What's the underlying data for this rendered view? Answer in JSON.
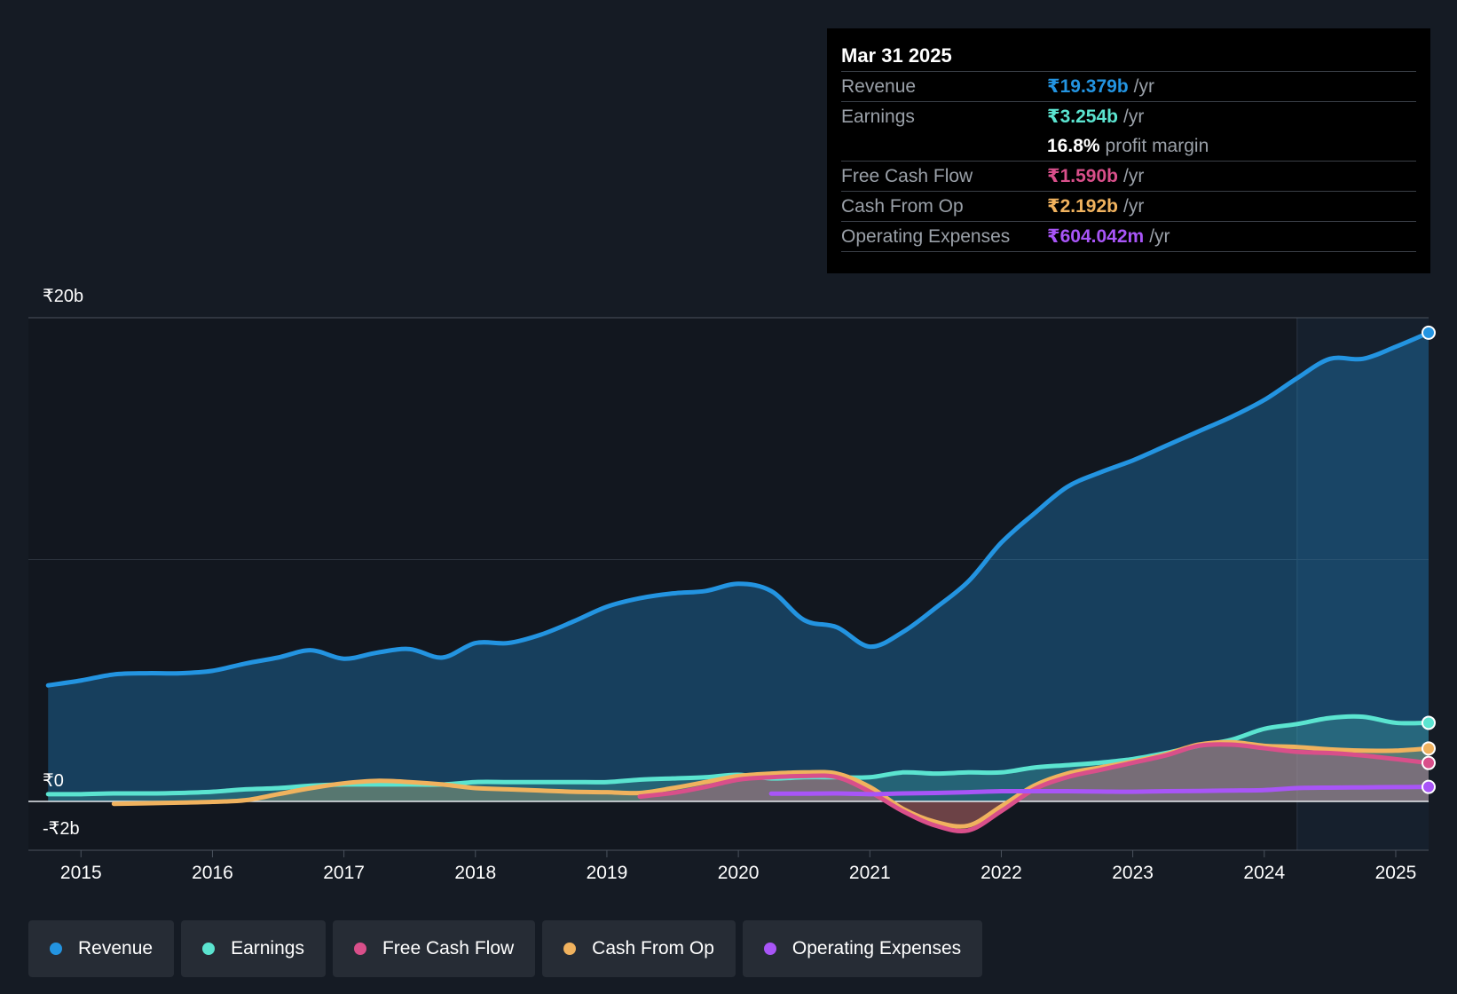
{
  "tooltip": {
    "date": "Mar 31 2025",
    "rows": [
      {
        "label": "Revenue",
        "value": "₹19.379b",
        "unit": "/yr",
        "color": "#2394e1"
      },
      {
        "label": "Earnings",
        "value": "₹3.254b",
        "unit": "/yr",
        "color": "#5be4d0"
      },
      {
        "label": "",
        "value": "16.8%",
        "unit": "profit margin",
        "color": "#ffffff"
      },
      {
        "label": "Free Cash Flow",
        "value": "₹1.590b",
        "unit": "/yr",
        "color": "#d94f8a"
      },
      {
        "label": "Cash From Op",
        "value": "₹2.192b",
        "unit": "/yr",
        "color": "#f0b25e"
      },
      {
        "label": "Operating Expenses",
        "value": "₹604.042m",
        "unit": "/yr",
        "color": "#a855f7"
      }
    ]
  },
  "legend": [
    {
      "label": "Revenue",
      "color": "#2394e1"
    },
    {
      "label": "Earnings",
      "color": "#5be4d0"
    },
    {
      "label": "Free Cash Flow",
      "color": "#d94f8a"
    },
    {
      "label": "Cash From Op",
      "color": "#f0b25e"
    },
    {
      "label": "Operating Expenses",
      "color": "#a855f7"
    }
  ],
  "chart_data": {
    "type": "area",
    "title": "",
    "xlabel": "",
    "ylabel": "",
    "y_axis_labels": {
      "top": "₹20b",
      "zero": "₹0",
      "bottom": "-₹2b"
    },
    "ylim": [
      -2,
      20
    ],
    "xlim": [
      2014.6,
      2025.25
    ],
    "x_ticks": [
      2015,
      2016,
      2017,
      2018,
      2019,
      2020,
      2021,
      2022,
      2023,
      2024,
      2025
    ],
    "forecast_shade_start": 2024.25,
    "series": [
      {
        "name": "Revenue",
        "color": "#2394e1",
        "fill": true,
        "x": [
          2014.75,
          2015.0,
          2015.25,
          2015.5,
          2015.75,
          2016.0,
          2016.25,
          2016.5,
          2016.75,
          2017.0,
          2017.25,
          2017.5,
          2017.75,
          2018.0,
          2018.25,
          2018.5,
          2018.75,
          2019.0,
          2019.25,
          2019.5,
          2019.75,
          2020.0,
          2020.25,
          2020.5,
          2020.75,
          2021.0,
          2021.25,
          2021.5,
          2021.75,
          2022.0,
          2022.25,
          2022.5,
          2022.75,
          2023.0,
          2023.25,
          2023.5,
          2023.75,
          2024.0,
          2024.25,
          2024.5,
          2024.75,
          2025.0,
          2025.25
        ],
        "y": [
          4.8,
          5.0,
          5.25,
          5.3,
          5.3,
          5.4,
          5.7,
          5.95,
          6.25,
          5.9,
          6.15,
          6.3,
          5.95,
          6.55,
          6.55,
          6.9,
          7.45,
          8.05,
          8.4,
          8.6,
          8.7,
          9.0,
          8.7,
          7.5,
          7.2,
          6.4,
          7.0,
          8.0,
          9.1,
          10.7,
          11.9,
          13.0,
          13.6,
          14.1,
          14.7,
          15.3,
          15.9,
          16.6,
          17.5,
          18.3,
          18.3,
          18.8,
          19.38
        ]
      },
      {
        "name": "Earnings",
        "color": "#5be4d0",
        "fill": true,
        "x": [
          2014.75,
          2015.0,
          2015.25,
          2015.5,
          2015.75,
          2016.0,
          2016.25,
          2016.5,
          2016.75,
          2017.0,
          2017.25,
          2017.5,
          2017.75,
          2018.0,
          2018.25,
          2018.5,
          2018.75,
          2019.0,
          2019.25,
          2019.5,
          2019.75,
          2020.0,
          2020.25,
          2020.5,
          2020.75,
          2021.0,
          2021.25,
          2021.5,
          2021.75,
          2022.0,
          2022.25,
          2022.5,
          2022.75,
          2023.0,
          2023.25,
          2023.5,
          2023.75,
          2024.0,
          2024.25,
          2024.5,
          2024.75,
          2025.0,
          2025.25
        ],
        "y": [
          0.3,
          0.3,
          0.33,
          0.33,
          0.35,
          0.4,
          0.5,
          0.55,
          0.65,
          0.7,
          0.7,
          0.7,
          0.7,
          0.8,
          0.8,
          0.8,
          0.8,
          0.8,
          0.9,
          0.95,
          1.0,
          1.1,
          0.95,
          1.0,
          1.0,
          1.0,
          1.2,
          1.15,
          1.2,
          1.2,
          1.4,
          1.5,
          1.6,
          1.75,
          2.0,
          2.3,
          2.55,
          3.0,
          3.2,
          3.45,
          3.5,
          3.25,
          3.25
        ]
      },
      {
        "name": "Free Cash Flow",
        "color": "#d94f8a",
        "fill": true,
        "x": [
          2019.25,
          2019.5,
          2019.75,
          2020.0,
          2020.25,
          2020.5,
          2020.75,
          2021.0,
          2021.25,
          2021.5,
          2021.75,
          2022.0,
          2022.25,
          2022.5,
          2022.75,
          2023.0,
          2023.25,
          2023.5,
          2023.75,
          2024.0,
          2024.25,
          2024.5,
          2024.75,
          2025.0,
          2025.25
        ],
        "y": [
          0.2,
          0.35,
          0.6,
          0.9,
          1.0,
          1.05,
          1.0,
          0.4,
          -0.4,
          -1.0,
          -1.2,
          -0.4,
          0.5,
          1.0,
          1.3,
          1.6,
          1.9,
          2.3,
          2.35,
          2.2,
          2.05,
          2.0,
          1.9,
          1.75,
          1.59
        ]
      },
      {
        "name": "Cash From Op",
        "color": "#f0b25e",
        "fill": true,
        "x": [
          2015.25,
          2015.5,
          2015.75,
          2016.0,
          2016.25,
          2016.5,
          2016.75,
          2017.0,
          2017.25,
          2017.5,
          2017.75,
          2018.0,
          2018.25,
          2018.5,
          2018.75,
          2019.0,
          2019.25,
          2019.5,
          2019.75,
          2020.0,
          2020.25,
          2020.5,
          2020.75,
          2021.0,
          2021.25,
          2021.5,
          2021.75,
          2022.0,
          2022.25,
          2022.5,
          2022.75,
          2023.0,
          2023.25,
          2023.5,
          2023.75,
          2024.0,
          2024.25,
          2024.5,
          2024.75,
          2025.0,
          2025.25
        ],
        "y": [
          -0.1,
          -0.08,
          -0.05,
          -0.02,
          0.05,
          0.3,
          0.55,
          0.75,
          0.85,
          0.8,
          0.7,
          0.55,
          0.5,
          0.45,
          0.4,
          0.38,
          0.35,
          0.55,
          0.8,
          1.05,
          1.15,
          1.2,
          1.15,
          0.6,
          -0.3,
          -0.85,
          -1.0,
          -0.2,
          0.65,
          1.15,
          1.4,
          1.65,
          1.95,
          2.35,
          2.45,
          2.3,
          2.25,
          2.15,
          2.1,
          2.1,
          2.19
        ]
      },
      {
        "name": "Operating Expenses",
        "color": "#a855f7",
        "fill": false,
        "x": [
          2020.25,
          2020.5,
          2020.75,
          2021.0,
          2021.25,
          2021.5,
          2021.75,
          2022.0,
          2022.25,
          2022.5,
          2022.75,
          2023.0,
          2023.25,
          2023.5,
          2023.75,
          2024.0,
          2024.25,
          2024.5,
          2024.75,
          2025.0,
          2025.25
        ],
        "y": [
          0.32,
          0.32,
          0.33,
          0.3,
          0.33,
          0.35,
          0.38,
          0.42,
          0.42,
          0.42,
          0.41,
          0.4,
          0.42,
          0.43,
          0.45,
          0.47,
          0.55,
          0.57,
          0.58,
          0.59,
          0.6
        ]
      }
    ]
  }
}
